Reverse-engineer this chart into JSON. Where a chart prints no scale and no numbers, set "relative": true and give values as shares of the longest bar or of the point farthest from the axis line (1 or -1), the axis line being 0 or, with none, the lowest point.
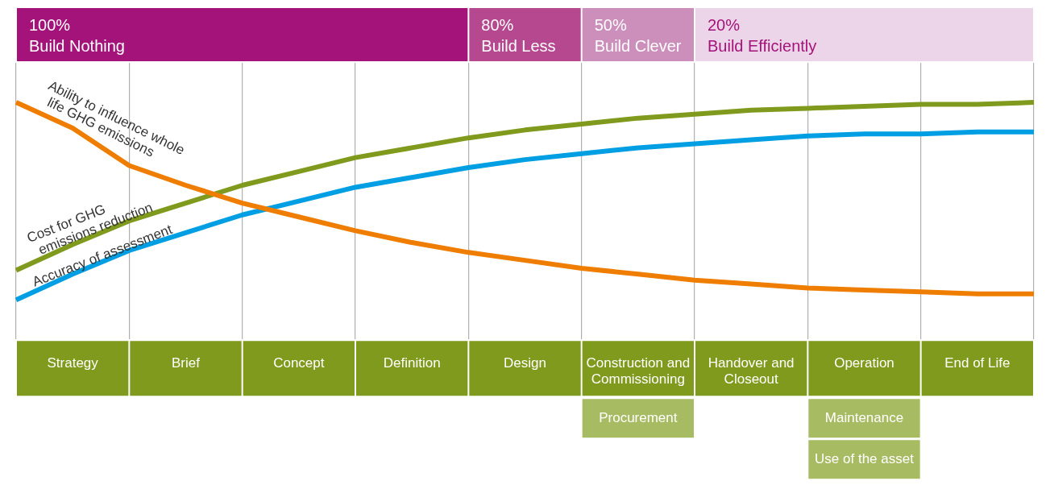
{
  "chart_data": {
    "type": "line",
    "relative": true,
    "legend": false,
    "grid": "x",
    "tick_labels": "x",
    "marker": "none",
    "categories": [
      null,
      "Strategy",
      null,
      "Brief",
      null,
      "Concept",
      null,
      "Definition",
      null,
      "Design",
      null,
      "Construction and Commissioning",
      null,
      "Handover and Closeout",
      null,
      "Operation",
      null,
      "End of Life",
      null
    ],
    "series": [
      {
        "name": "Ability to influence whole\nlife GHG emissions",
        "color": "#ef7d00",
        "values": [
          1,
          0.87,
          0.68,
          0.58,
          0.49,
          0.42,
          0.35,
          0.29,
          0.24,
          0.2,
          0.16,
          0.13,
          0.1,
          0.08,
          0.06,
          0.05,
          0.04,
          0.03,
          0.03
        ]
      },
      {
        "name": "Cost for GHG\nemissions reduction",
        "color": "#7f9a1c",
        "values": [
          0.15,
          0.28,
          0.4,
          0.49,
          0.58,
          0.65,
          0.72,
          0.77,
          0.82,
          0.86,
          0.89,
          0.92,
          0.94,
          0.96,
          0.97,
          0.98,
          0.99,
          0.99,
          1
        ]
      },
      {
        "name": "Accuracy of assessment",
        "color": "#009fe3",
        "values": [
          0,
          0.13,
          0.25,
          0.34,
          0.43,
          0.5,
          0.57,
          0.62,
          0.67,
          0.71,
          0.74,
          0.77,
          0.79,
          0.81,
          0.83,
          0.84,
          0.84,
          0.85,
          0.85
        ]
      }
    ],
    "annotations": [
      "100%\nBuild Nothing",
      "80%\nBuild Less",
      "50%\nBuild Clever",
      "20%\nBuild Efficiently",
      "Procurement",
      "Maintenance",
      "Use of the asset"
    ]
  }
}
